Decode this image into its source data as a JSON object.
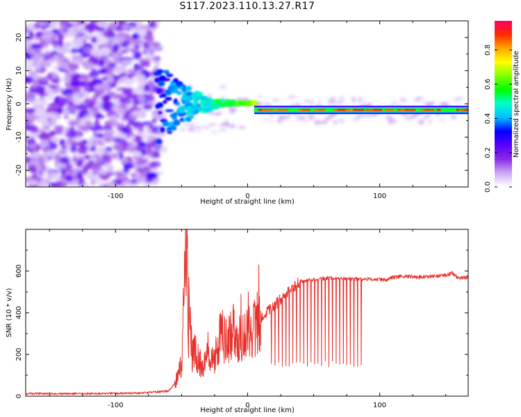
{
  "title": "S117.2023.110.13.27.R17",
  "chart_data": [
    {
      "type": "heatmap",
      "xlabel": "Height of straight line (km)",
      "ylabel": "Frequency (Hz)",
      "xlim": [
        -168,
        167
      ],
      "ylim": [
        -25,
        25
      ],
      "xticks": [
        -100,
        0,
        100
      ],
      "yticks": [
        -20,
        -10,
        0,
        10,
        20
      ],
      "colorbar": {
        "label": "Normalized spectral amplitude",
        "range": [
          0,
          0.97
        ],
        "ticks": [
          0.0,
          0.2,
          0.4,
          0.6,
          0.8
        ],
        "colors": [
          "#ffffff",
          "#c9a8f5",
          "#8a2be2",
          "#5a00ff",
          "#0000ff",
          "#00bfff",
          "#00ffcc",
          "#00ff00",
          "#7fff00",
          "#ffff00",
          "#ffa500",
          "#ff2a00",
          "#ff0066"
        ]
      },
      "features": {
        "noise_region_x": [
          -168,
          -68
        ],
        "converge_x": [
          -68,
          5
        ],
        "steady_x": [
          5,
          167
        ],
        "steady_frequency_hz": -1.8,
        "steady_level": 0.85
      }
    },
    {
      "type": "line",
      "xlabel": "Height of straight line (km)",
      "ylabel": "SNR (10 * v/v)",
      "xlim": [
        -168,
        167
      ],
      "ylim": [
        0,
        800
      ],
      "xticks": [
        -100,
        0,
        100
      ],
      "yticks": [
        0,
        200,
        400,
        600
      ],
      "color": "#e8302b",
      "series": [
        {
          "x": [
            -168,
            -120,
            -80,
            -60,
            -55,
            -50,
            -48,
            -46,
            -45,
            -44,
            -42,
            -40,
            -35,
            -30,
            -25,
            -20,
            -15,
            -10,
            -5,
            0,
            5,
            10,
            20,
            30,
            40,
            50,
            60,
            70,
            80,
            90,
            100,
            105,
            110,
            120,
            130,
            140,
            150,
            155,
            160,
            167
          ],
          "y": [
            12,
            12,
            15,
            25,
            60,
            150,
            560,
            780,
            300,
            400,
            180,
            230,
            150,
            220,
            180,
            300,
            260,
            320,
            260,
            320,
            330,
            380,
            430,
            500,
            550,
            560,
            565,
            565,
            562,
            560,
            560,
            555,
            570,
            575,
            570,
            575,
            580,
            590,
            565,
            570
          ]
        }
      ],
      "spikes": [
        {
          "x": -45.5,
          "y": 770
        },
        {
          "x": -44.5,
          "y": 570
        },
        {
          "x": 8.5,
          "y": 630
        },
        {
          "x": 0.5,
          "y": 500
        },
        {
          "x": -5,
          "y": 490
        }
      ],
      "dips": {
        "x_from": 18,
        "x_to": 86,
        "count": 26,
        "y_min": 140
      }
    }
  ]
}
